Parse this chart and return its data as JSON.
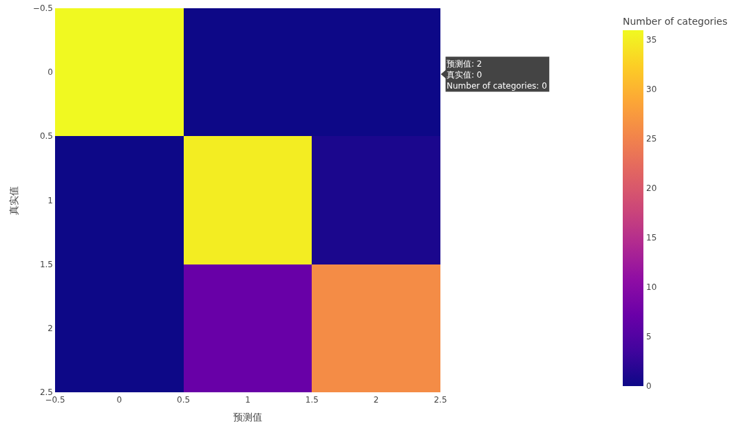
{
  "chart_data": {
    "type": "heatmap",
    "xlabel": "预测值",
    "ylabel": "真实值",
    "clabel": "Number of categories",
    "x": [
      0,
      1,
      2
    ],
    "y": [
      0,
      1,
      2
    ],
    "cells": [
      [
        36,
        0,
        0
      ],
      [
        0,
        35,
        1
      ],
      [
        0,
        7,
        26
      ]
    ],
    "xlim": [
      -0.5,
      2.5
    ],
    "xticks": [
      {
        "value": -0.5,
        "label": "−0.5"
      },
      0,
      0.5,
      1,
      1.5,
      2,
      2.5
    ],
    "ylim": [
      2.5,
      -0.5
    ],
    "yticks": [
      {
        "value": -0.5,
        "label": "−0.5"
      },
      0,
      0.5,
      1,
      1.5,
      2,
      2.5
    ],
    "clim": [
      0,
      36
    ],
    "cticks": [
      0,
      5,
      10,
      15,
      20,
      25,
      30,
      35
    ],
    "annotations": [
      "预测值: 2\n真实值: 0\nNumber of categories: 0"
    ]
  }
}
